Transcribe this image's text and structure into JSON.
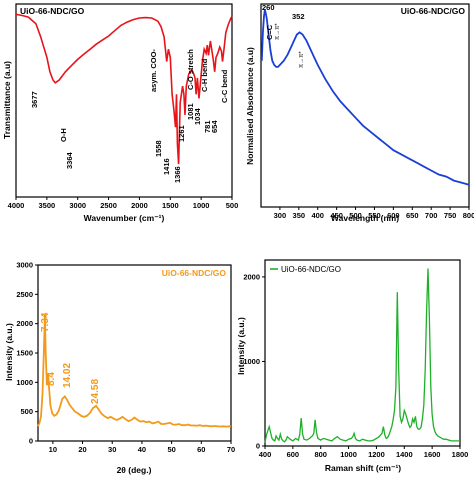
{
  "chart_data": [
    {
      "type": "line",
      "legend": "UiO-66-NDC/GO",
      "xlabel": "Wavenumber (cm⁻¹)",
      "ylabel": "Transmittance (a.u)",
      "xlim": [
        4000,
        500
      ],
      "x_ticks": [
        "4000",
        "3500",
        "3000",
        "2500",
        "2000",
        "1500",
        "1000",
        "500"
      ],
      "color": "#e8141a",
      "series": [
        {
          "x": [
            4000,
            3900,
            3800,
            3700,
            3677,
            3600,
            3500,
            3450,
            3400,
            3364,
            3300,
            3200,
            3100,
            3000,
            2900,
            2800,
            2700,
            2600,
            2500,
            2400,
            2300,
            2200,
            2100,
            2000,
            1900,
            1800,
            1700,
            1650,
            1600,
            1558,
            1530,
            1500,
            1470,
            1440,
            1416,
            1400,
            1385,
            1366,
            1340,
            1300,
            1280,
            1261,
            1240,
            1200,
            1150,
            1120,
            1100,
            1081,
            1060,
            1034,
            1010,
            980,
            950,
            920,
            900,
            880,
            850,
            820,
            800,
            781,
            760,
            730,
            700,
            670,
            654,
            630,
            600,
            560,
            520,
            500
          ],
          "y": [
            99.5,
            99.2,
            98.8,
            97.5,
            97.2,
            94,
            89,
            85.5,
            83.5,
            82.8,
            83.5,
            85.5,
            87,
            88.5,
            89.8,
            91,
            92.2,
            93.2,
            94.2,
            95.5,
            96.8,
            97.6,
            98.2,
            98.6,
            98.7,
            98.6,
            97.8,
            96.5,
            94,
            88,
            91,
            89,
            80,
            76,
            72,
            80,
            68,
            63,
            78,
            82,
            80,
            75,
            82,
            85,
            86,
            85,
            84,
            80,
            84,
            79,
            83,
            88,
            91,
            90,
            92,
            89.5,
            93,
            90,
            88,
            85.5,
            89,
            90,
            91.5,
            90.5,
            88,
            91,
            95,
            97,
            98.5,
            99
          ]
        }
      ],
      "annotations": [
        {
          "text": "3677",
          "x": 3677
        },
        {
          "text": "O-H",
          "x": 3364
        },
        {
          "text": "3364",
          "x": 3364
        },
        {
          "text": "asym. COO-",
          "x": 1600
        },
        {
          "text": "1558",
          "x": 1558
        },
        {
          "text": "1416",
          "x": 1416
        },
        {
          "text": "1366",
          "x": 1366
        },
        {
          "text": "1261",
          "x": 1261
        },
        {
          "text": "C-O stretch",
          "x": 1081
        },
        {
          "text": "1081",
          "x": 1081
        },
        {
          "text": "1034",
          "x": 1034
        },
        {
          "text": "C-H bend",
          "x": 860
        },
        {
          "text": "781",
          "x": 781
        },
        {
          "text": "654",
          "x": 654
        },
        {
          "text": "C-C bend",
          "x": 560
        }
      ]
    },
    {
      "type": "line",
      "legend": "UiO-66-NDC/GO",
      "xlabel": "Wavelength (nm)",
      "ylabel": "Normalised Absorbance (a.u)",
      "xlim": [
        250,
        800
      ],
      "x_ticks": [
        "300",
        "350",
        "400",
        "450",
        "500",
        "550",
        "600",
        "650",
        "700",
        "750",
        "800"
      ],
      "color": "#1a3fd4",
      "series": [
        {
          "x": [
            252,
            255,
            258,
            260,
            262,
            265,
            270,
            275,
            280,
            285,
            290,
            295,
            300,
            310,
            320,
            330,
            340,
            345,
            352,
            360,
            370,
            380,
            390,
            400,
            420,
            440,
            460,
            480,
            500,
            520,
            540,
            560,
            580,
            600,
            620,
            640,
            660,
            680,
            700,
            720,
            740,
            760,
            780,
            800
          ],
          "y": [
            0.72,
            0.86,
            0.94,
            0.97,
            0.96,
            0.93,
            0.85,
            0.77,
            0.72,
            0.7,
            0.69,
            0.69,
            0.7,
            0.72,
            0.75,
            0.79,
            0.83,
            0.85,
            0.86,
            0.85,
            0.82,
            0.78,
            0.74,
            0.7,
            0.63,
            0.57,
            0.52,
            0.48,
            0.44,
            0.4,
            0.37,
            0.34,
            0.31,
            0.28,
            0.26,
            0.24,
            0.22,
            0.2,
            0.18,
            0.16,
            0.15,
            0.13,
            0.12,
            0.11
          ]
        }
      ],
      "annotations": [
        {
          "text": "260",
          "x": 260
        },
        {
          "text": "C=C",
          "x": 255
        },
        {
          "text": "π→π*",
          "x": 263
        },
        {
          "text": "352",
          "x": 352
        },
        {
          "text": "π→π*",
          "x": 352
        }
      ]
    },
    {
      "type": "line",
      "legend": "UiO-66-NDC/GO",
      "xlabel": "2θ (deg.)",
      "ylabel": "Intensity (a.u.)",
      "xlim": [
        5,
        70
      ],
      "ylim": [
        0,
        3000
      ],
      "x_ticks": [
        "10",
        "20",
        "30",
        "40",
        "50",
        "60",
        "70"
      ],
      "y_ticks": [
        "0",
        "500",
        "1000",
        "1500",
        "2000",
        "2500",
        "3000"
      ],
      "color": "#f39a1b",
      "series": [
        {
          "x": [
            5,
            5.5,
            6,
            6.5,
            7,
            7.34,
            7.6,
            8,
            8.4,
            8.8,
            9.2,
            9.8,
            10.5,
            11.2,
            12,
            12.6,
            13.2,
            14.02,
            14.8,
            15.6,
            16.5,
            17.5,
            18.5,
            19.5,
            20.5,
            21.5,
            22.5,
            23.5,
            24.58,
            25.5,
            26.5,
            27.5,
            28.5,
            29.5,
            30.5,
            31.5,
            32.5,
            33.5,
            34.5,
            35.5,
            36.5,
            37.5,
            38.5,
            39.5,
            40.5,
            41.5,
            42.5,
            43.5,
            44.5,
            45.5,
            46.5,
            47.5,
            48.5,
            49.5,
            50.5,
            51.5,
            52.5,
            53.5,
            54.5,
            55.5,
            56.5,
            57.5,
            58.5,
            59.5,
            60.5,
            61.5,
            62.5,
            63.5,
            64.5,
            65.5,
            66.5,
            67.5,
            68.5,
            69.5,
            70
          ],
          "y": [
            250,
            310,
            420,
            800,
            1550,
            2150,
            1500,
            950,
            1150,
            850,
            600,
            470,
            430,
            450,
            520,
            620,
            720,
            760,
            700,
            620,
            560,
            500,
            470,
            430,
            410,
            430,
            480,
            560,
            600,
            530,
            460,
            420,
            390,
            410,
            380,
            360,
            380,
            410,
            370,
            340,
            360,
            400,
            360,
            330,
            340,
            320,
            330,
            300,
            310,
            330,
            290,
            290,
            300,
            310,
            280,
            280,
            290,
            270,
            270,
            280,
            265,
            265,
            260,
            270,
            255,
            260,
            255,
            250,
            255,
            250,
            248,
            250,
            245,
            250,
            248
          ]
        }
      ],
      "annotations": [
        {
          "text": "7.34",
          "x": 7.34
        },
        {
          "text": "8.4",
          "x": 8.4
        },
        {
          "text": "14.02",
          "x": 14.02
        },
        {
          "text": "24.58",
          "x": 24.58
        }
      ]
    },
    {
      "type": "line",
      "legend": "UiO-66-NDC/GO",
      "xlabel": "Raman shift (cm⁻¹)",
      "ylabel": "Intensity (a.u.)",
      "xlim": [
        400,
        1800
      ],
      "ylim": [
        0,
        2200
      ],
      "x_ticks": [
        "400",
        "600",
        "800",
        "1000",
        "1200",
        "1400",
        "1600",
        "1800"
      ],
      "y_ticks": [
        "0",
        "1000",
        "2000"
      ],
      "color": "#1fb02a",
      "series": [
        {
          "x": [
            400,
            410,
            420,
            430,
            440,
            450,
            460,
            470,
            480,
            490,
            500,
            510,
            520,
            530,
            540,
            550,
            560,
            580,
            600,
            620,
            640,
            650,
            660,
            670,
            680,
            700,
            720,
            740,
            750,
            760,
            770,
            780,
            800,
            820,
            840,
            860,
            880,
            900,
            920,
            940,
            960,
            980,
            1000,
            1020,
            1030,
            1040,
            1050,
            1060,
            1080,
            1100,
            1120,
            1140,
            1160,
            1180,
            1200,
            1220,
            1240,
            1250,
            1260,
            1270,
            1280,
            1290,
            1300,
            1310,
            1320,
            1330,
            1340,
            1350,
            1360,
            1370,
            1380,
            1390,
            1400,
            1410,
            1420,
            1430,
            1440,
            1450,
            1460,
            1470,
            1480,
            1490,
            1500,
            1510,
            1520,
            1530,
            1540,
            1550,
            1560,
            1570,
            1580,
            1590,
            1600,
            1610,
            1620,
            1630,
            1640,
            1660,
            1680,
            1700,
            1720,
            1740,
            1760,
            1780,
            1800
          ],
          "y": [
            40,
            130,
            180,
            230,
            160,
            90,
            70,
            60,
            120,
            90,
            70,
            140,
            80,
            60,
            50,
            70,
            110,
            80,
            60,
            90,
            70,
            140,
            330,
            140,
            80,
            70,
            90,
            120,
            150,
            310,
            160,
            90,
            70,
            90,
            80,
            70,
            60,
            90,
            110,
            80,
            70,
            60,
            80,
            90,
            110,
            150,
            90,
            70,
            60,
            80,
            70,
            60,
            60,
            70,
            90,
            110,
            150,
            230,
            130,
            90,
            100,
            130,
            180,
            230,
            310,
            420,
            700,
            1820,
            900,
            350,
            280,
            320,
            420,
            380,
            320,
            260,
            220,
            240,
            320,
            280,
            350,
            230,
            200,
            200,
            220,
            320,
            480,
            900,
            1600,
            2100,
            1500,
            700,
            380,
            230,
            170,
            140,
            120,
            100,
            80,
            80,
            70,
            60,
            60,
            60,
            60
          ]
        }
      ]
    }
  ]
}
